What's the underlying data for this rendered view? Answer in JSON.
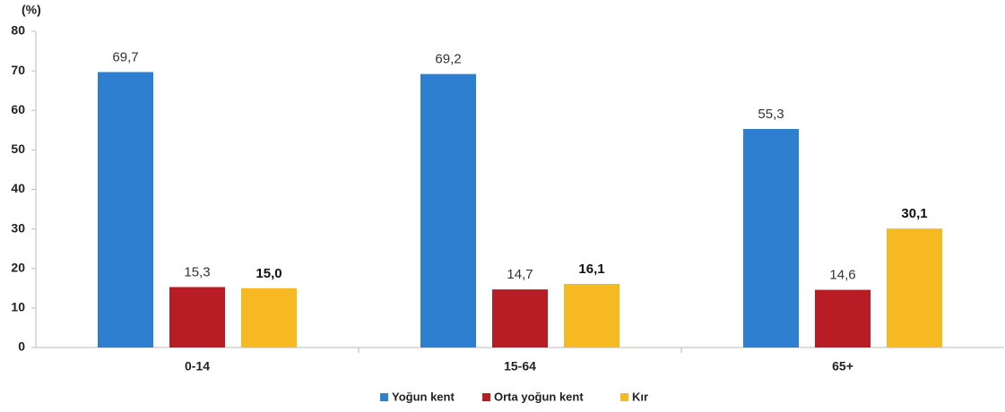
{
  "chart_data": {
    "type": "bar",
    "ylabel": "(%)",
    "categories": [
      "0-14",
      "15-64",
      "65+"
    ],
    "series": [
      {
        "name": "Yoğun kent",
        "color": "#2e7fcf",
        "values": [
          69.7,
          69.2,
          55.3
        ],
        "value_labels": [
          "69,7",
          "69,2",
          "55,3"
        ]
      },
      {
        "name": "Orta yoğun kent",
        "color": "#b81c25",
        "values": [
          15.3,
          14.7,
          14.6
        ],
        "value_labels": [
          "15,3",
          "14,7",
          "14,6"
        ]
      },
      {
        "name": "Kır",
        "color": "#f6b921",
        "values": [
          15.0,
          16.1,
          30.1
        ],
        "value_labels": [
          "15,0",
          "16,1",
          "30,1"
        ]
      }
    ],
    "ylim": [
      0,
      80
    ],
    "yticks": [
      0,
      10,
      20,
      30,
      40,
      50,
      60,
      70,
      80
    ],
    "grid": false,
    "legend": "bottom"
  }
}
